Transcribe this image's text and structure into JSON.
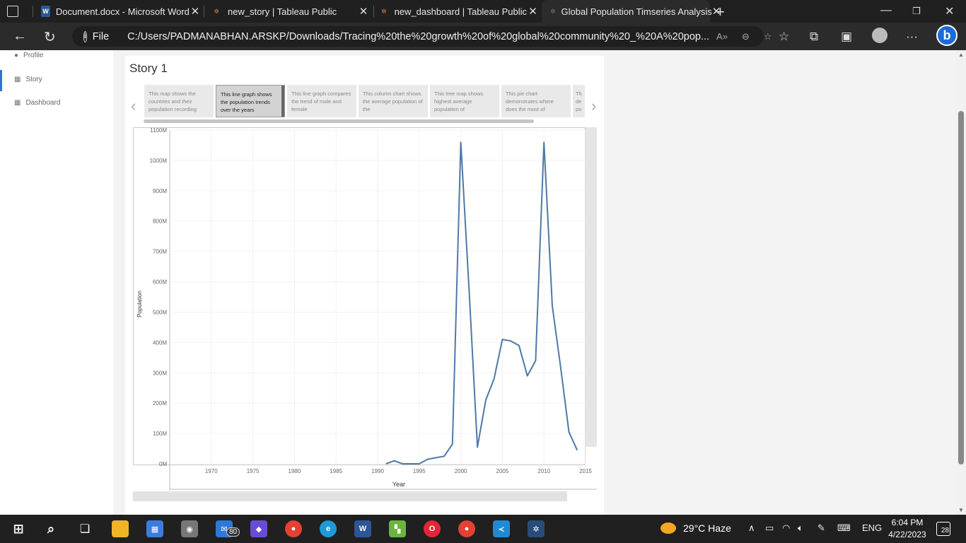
{
  "browser": {
    "tabs": [
      {
        "title": "Document.docx - Microsoft Word",
        "favicon": "W"
      },
      {
        "title": "new_story | Tableau Public",
        "favicon": "tableau"
      },
      {
        "title": "new_dashboard | Tableau Public",
        "favicon": "tableau"
      },
      {
        "title": "Global Population Timseries Analysis",
        "favicon": "tableau",
        "active": true
      }
    ],
    "address": {
      "scheme_label": "File",
      "url": "C:/Users/PADMANABHAN.ARSKP/Downloads/Tracing%20the%20growth%20of%20global%20community%20_%20A%20pop..."
    }
  },
  "sidebar": {
    "items": [
      {
        "label": "Profile",
        "icon": "person-icon"
      },
      {
        "label": "Story",
        "icon": "grid-icon",
        "active": true
      },
      {
        "label": "Dashboard",
        "icon": "grid-icon"
      }
    ]
  },
  "story": {
    "title": "Story 1",
    "points": [
      {
        "text": "This map shows the countries and their population recording"
      },
      {
        "text": "This line graph shows the population trends over the years",
        "active": true
      },
      {
        "text": "This line graph compares the trend of male and female"
      },
      {
        "text": "This column chart shows the average population of the"
      },
      {
        "text": "This tree map shows highest  average population of"
      },
      {
        "text": "This pie chart demonstrates where does the most of"
      },
      {
        "text": "Th de po"
      }
    ]
  },
  "chart_data": {
    "type": "line",
    "xlabel": "Year",
    "ylabel": "Population",
    "xlim": [
      1965,
      2015
    ],
    "ylim": [
      0,
      1100
    ],
    "x_ticks": [
      "1970",
      "1975",
      "1980",
      "1985",
      "1990",
      "1995",
      "2000",
      "2005",
      "2010",
      "2015"
    ],
    "y_ticks": [
      "0M",
      "100M",
      "200M",
      "300M",
      "400M",
      "500M",
      "600M",
      "700M",
      "800M",
      "900M",
      "1000M",
      "1100M"
    ],
    "line_color": "#4e79a7",
    "series": [
      {
        "x": [
          1991,
          1992,
          1993,
          1994,
          1995,
          1996,
          1997,
          1998,
          1999,
          2000,
          2001,
          2002,
          2003,
          2004,
          2005,
          2006,
          2007,
          2008,
          2009,
          2010,
          2011,
          2012,
          2013,
          2014
        ],
        "y": [
          0,
          10,
          0,
          0,
          0,
          15,
          20,
          25,
          65,
          1060,
          570,
          55,
          210,
          280,
          410,
          405,
          390,
          290,
          340,
          1060,
          520,
          320,
          105,
          45
        ]
      }
    ]
  },
  "taskbar": {
    "badge": "80",
    "weather": "29°C  Haze",
    "lang": "ENG",
    "time": "6:04 PM",
    "date": "4/22/2023",
    "notifications": "28"
  }
}
